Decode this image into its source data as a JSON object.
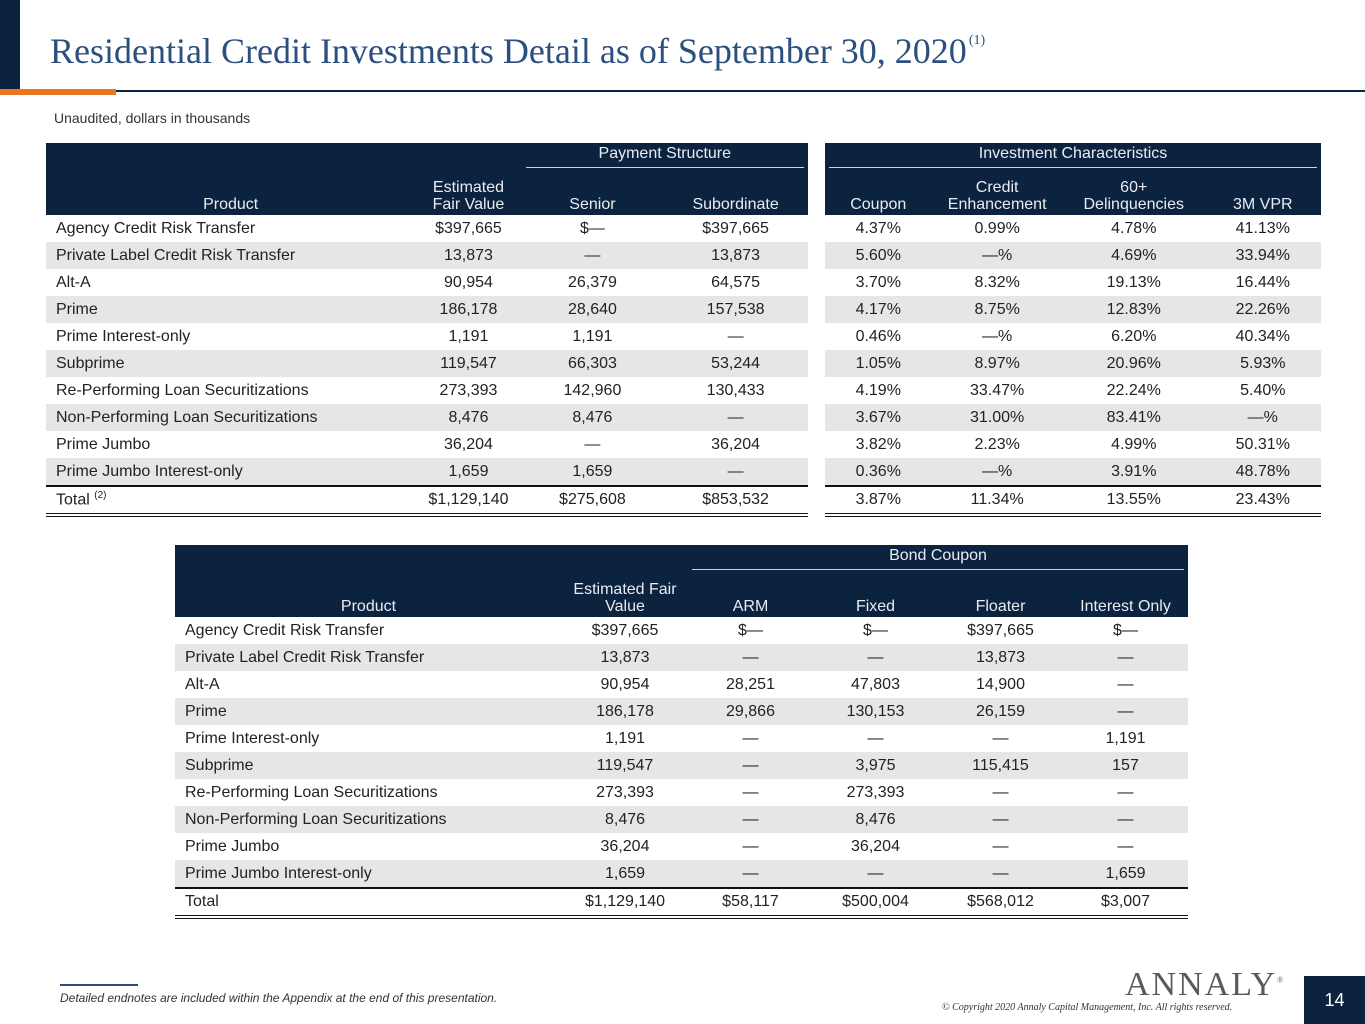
{
  "header": {
    "title": "Residential Credit Investments Detail as of September 30, 2020",
    "title_footnote": "(1)",
    "subtitle": "Unaudited, dollars in thousands"
  },
  "table1": {
    "group_headers": [
      "Payment Structure",
      "Investment Characteristics"
    ],
    "columns": [
      "Product",
      "Estimated\nFair Value",
      "Senior",
      "Subordinate",
      "Coupon",
      "Credit\nEnhancement",
      "60+\nDelinquencies",
      "3M VPR"
    ],
    "rows": [
      [
        "Agency Credit Risk Transfer",
        "$397,665",
        "$—",
        "$397,665",
        "4.37%",
        "0.99%",
        "4.78%",
        "41.13%"
      ],
      [
        "Private Label Credit Risk Transfer",
        "13,873",
        "—",
        "13,873",
        "5.60%",
        "—%",
        "4.69%",
        "33.94%"
      ],
      [
        "Alt-A",
        "90,954",
        "26,379",
        "64,575",
        "3.70%",
        "8.32%",
        "19.13%",
        "16.44%"
      ],
      [
        "Prime",
        "186,178",
        "28,640",
        "157,538",
        "4.17%",
        "8.75%",
        "12.83%",
        "22.26%"
      ],
      [
        "Prime Interest-only",
        "1,191",
        "1,191",
        "—",
        "0.46%",
        "—%",
        "6.20%",
        "40.34%"
      ],
      [
        "Subprime",
        "119,547",
        "66,303",
        "53,244",
        "1.05%",
        "8.97%",
        "20.96%",
        "5.93%"
      ],
      [
        "Re-Performing Loan Securitizations",
        "273,393",
        "142,960",
        "130,433",
        "4.19%",
        "33.47%",
        "22.24%",
        "5.40%"
      ],
      [
        "Non-Performing Loan Securitizations",
        "8,476",
        "8,476",
        "—",
        "3.67%",
        "31.00%",
        "83.41%",
        "—%"
      ],
      [
        "Prime Jumbo",
        "36,204",
        "—",
        "36,204",
        "3.82%",
        "2.23%",
        "4.99%",
        "50.31%"
      ],
      [
        "Prime Jumbo Interest-only",
        "1,659",
        "1,659",
        "—",
        "0.36%",
        "—%",
        "3.91%",
        "48.78%"
      ]
    ],
    "total": {
      "label": "Total",
      "footnote": "(2)",
      "values": [
        "$1,129,140",
        "$275,608",
        "$853,532",
        "3.87%",
        "11.34%",
        "13.55%",
        "23.43%"
      ]
    }
  },
  "table2": {
    "group_header": "Bond Coupon",
    "columns": [
      "Product",
      "Estimated Fair\nValue",
      "ARM",
      "Fixed",
      "Floater",
      "Interest Only"
    ],
    "rows": [
      [
        "Agency Credit Risk Transfer",
        "$397,665",
        "$—",
        "$—",
        "$397,665",
        "$—"
      ],
      [
        "Private Label Credit Risk Transfer",
        "13,873",
        "—",
        "—",
        "13,873",
        "—"
      ],
      [
        "Alt-A",
        "90,954",
        "28,251",
        "47,803",
        "14,900",
        "—"
      ],
      [
        "Prime",
        "186,178",
        "29,866",
        "130,153",
        "26,159",
        "—"
      ],
      [
        "Prime Interest-only",
        "1,191",
        "—",
        "—",
        "—",
        "1,191"
      ],
      [
        "Subprime",
        "119,547",
        "—",
        "3,975",
        "115,415",
        "157"
      ],
      [
        "Re-Performing Loan Securitizations",
        "273,393",
        "—",
        "273,393",
        "—",
        "—"
      ],
      [
        "Non-Performing Loan Securitizations",
        "8,476",
        "—",
        "8,476",
        "—",
        "—"
      ],
      [
        "Prime Jumbo",
        "36,204",
        "—",
        "36,204",
        "—",
        "—"
      ],
      [
        "Prime Jumbo Interest-only",
        "1,659",
        "—",
        "—",
        "—",
        "1,659"
      ]
    ],
    "total": {
      "label": "Total",
      "values": [
        "$1,129,140",
        "$58,117",
        "$500,004",
        "$568,012",
        "$3,007"
      ]
    }
  },
  "footer": {
    "endnote": "Detailed endnotes are included within the Appendix at the end of this presentation.",
    "logo": "ANNALY",
    "logo_mark": "®",
    "copyright": "© Copyright 2020 Annaly Capital Management, Inc.  All rights reserved.",
    "page_number": "14"
  },
  "colors": {
    "navy": "#0c2340",
    "accent_orange": "#e87722",
    "title_blue": "#2b4f7e",
    "stripe": "#e6e6e6"
  }
}
